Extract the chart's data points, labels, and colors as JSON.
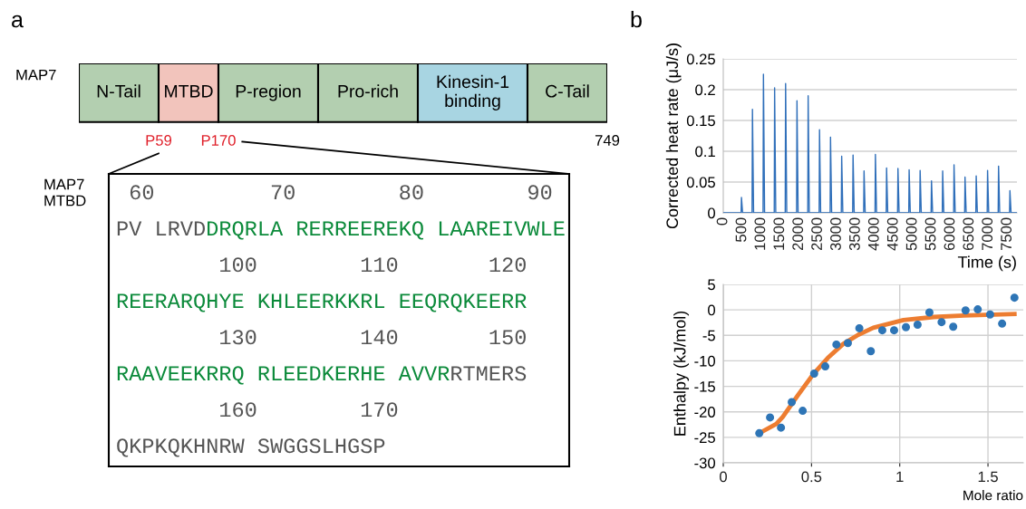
{
  "chart_data": [
    {
      "type": "other",
      "title": "a",
      "ylabel": "MAP7",
      "categories": [
        "N-Tail",
        "MTBD",
        "P-region",
        "Pro-rich",
        "Kinesin-1\nbinding",
        "C-Tail"
      ],
      "colors": [
        "#b3cfb0",
        "#f2c4bc",
        "#b3cfb0",
        "#b3cfb0",
        "#a8d5e2",
        "#b3cfb0"
      ],
      "annotations": [
        "P59",
        "P170",
        "749"
      ]
    },
    {
      "type": "other",
      "ylabel": "MAP7\nMTBD",
      "annotations": [
        " 60         70        80        90",
        "PV LRVD",
        "DRQRLA RERREEREKQ LAAREIVWLE",
        "        100        110       120",
        "REERARQHYE KHLEERKKRL EEQRQKEERR",
        "        130        140       150",
        "RAAVEEKRRQ RLEEDKERHE AVVR",
        "RTMERS",
        "        160        170",
        "QKPKQKHNRW SWGGSLHGSP"
      ],
      "colors": [
        "#555555",
        "#555555",
        "#0b8a3a",
        "#555555",
        "#0b8a3a",
        "#555555",
        "#0b8a3a",
        "#555555",
        "#555555",
        "#555555"
      ]
    },
    {
      "type": "line",
      "title": "b",
      "xlabel": "Time (s)",
      "ylabel": "Corrected heat rate (μJ/s)",
      "grid": "y",
      "color": "#2f6fba",
      "x": [
        0,
        470,
        480,
        510,
        760,
        770,
        800,
        1050,
        1060,
        1090,
        1345,
        1355,
        1385,
        1635,
        1645,
        1675,
        1935,
        1945,
        1975,
        2230,
        2240,
        2270,
        2530,
        2540,
        2570,
        2820,
        2830,
        2860,
        3115,
        3125,
        3155,
        3415,
        3425,
        3455,
        3705,
        3715,
        3745,
        4005,
        4015,
        4045,
        4300,
        4310,
        4340,
        4600,
        4610,
        4640,
        4895,
        4905,
        4935,
        5185,
        5195,
        5225,
        5485,
        5495,
        5525,
        5780,
        5790,
        5820,
        6080,
        6090,
        6120,
        6370,
        6380,
        6410,
        6665,
        6675,
        6705,
        6965,
        6975,
        7005,
        7255,
        7265,
        7295,
        7555,
        7565,
        7595,
        7735
      ],
      "values": [
        0,
        0,
        0.025,
        0,
        0,
        0.168,
        0,
        0,
        0.225,
        0,
        0,
        0.203,
        0,
        0,
        0.21,
        0,
        0,
        0.182,
        0,
        0,
        0.19,
        0,
        0,
        0.135,
        0,
        0,
        0.123,
        0,
        0,
        0.092,
        0,
        0,
        0.094,
        0,
        0,
        0.068,
        0,
        0,
        0.095,
        0,
        0,
        0.073,
        0,
        0,
        0.072,
        0,
        0,
        0.07,
        0,
        0,
        0.069,
        0,
        0,
        0.052,
        0,
        0,
        0.068,
        0,
        0,
        0.078,
        0,
        0,
        0.058,
        0,
        0,
        0.06,
        0,
        0,
        0.069,
        0,
        0,
        0.076,
        0,
        0,
        0.036,
        0,
        0
      ],
      "xlim": [
        0,
        7750
      ],
      "xticks": [
        0,
        500,
        1000,
        1500,
        2000,
        2500,
        3000,
        3500,
        4000,
        4500,
        5000,
        5500,
        6000,
        6500,
        7000,
        7500
      ],
      "ylim": [
        0,
        0.25
      ],
      "yticks": [
        0,
        0.05,
        0.1,
        0.15,
        0.2,
        0.25
      ]
    },
    {
      "type": "scatter",
      "xlabel": "Mole ratio",
      "ylabel": "Enthalpy (kJ/mol)",
      "grid": true,
      "xlim": [
        0,
        1.7
      ],
      "xticks": [
        0,
        0.5,
        1,
        1.5
      ],
      "ylim": [
        -30,
        5
      ],
      "yticks": [
        -30,
        -25,
        -20,
        -15,
        -10,
        -5,
        0,
        5
      ],
      "series": [
        {
          "type": "scatter",
          "marker": "circle",
          "color": "#2e75b6",
          "x": [
            0.204,
            0.265,
            0.327,
            0.388,
            0.45,
            0.515,
            0.578,
            0.641,
            0.706,
            0.771,
            0.836,
            0.901,
            0.968,
            1.035,
            1.101,
            1.168,
            1.237,
            1.303,
            1.373,
            1.442,
            1.512,
            1.58,
            1.65
          ],
          "values": [
            -24.2,
            -21.1,
            -23.1,
            -18.1,
            -19.8,
            -12.5,
            -11.1,
            -6.8,
            -6.5,
            -3.6,
            -8.1,
            -4.0,
            -4.0,
            -3.4,
            -2.9,
            -0.5,
            -2.4,
            -3.3,
            -0.1,
            0.1,
            -0.9,
            -2.7,
            2.4
          ]
        },
        {
          "type": "line",
          "color": "#ed7d31",
          "x": [
            0.209,
            0.3,
            0.337,
            0.422,
            0.508,
            0.593,
            0.679,
            0.764,
            0.85,
            1.021,
            1.192,
            1.363,
            1.65
          ],
          "values": [
            -24.1,
            -22.4,
            -21.0,
            -16.8,
            -12.7,
            -9.4,
            -6.7,
            -4.9,
            -3.5,
            -2.0,
            -1.4,
            -1.1,
            -0.8
          ]
        }
      ]
    }
  ]
}
